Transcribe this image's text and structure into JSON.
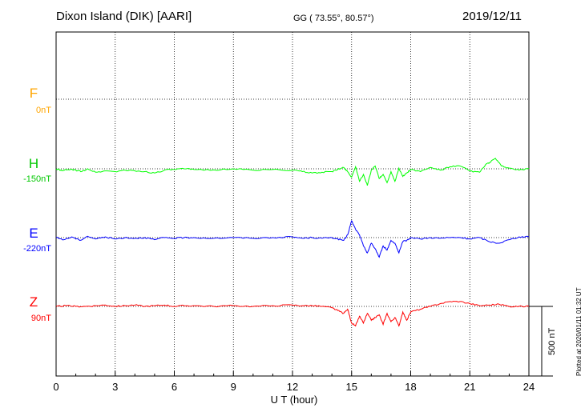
{
  "header": {
    "station": "Dixon Island (DIK)  [AARI]",
    "coords": "GG ( 73.55°,  80.57°)",
    "date": "2019/12/11"
  },
  "footer": {
    "stamp": "Plotted at 2020/01/11 01:32 UT"
  },
  "components": [
    {
      "name": "F",
      "offset": "0nT",
      "color": "#ffa500"
    },
    {
      "name": "H",
      "offset": "-150nT",
      "color": "#00c800"
    },
    {
      "name": "E",
      "offset": "-220nT",
      "color": "#0000ff"
    },
    {
      "name": "Z",
      "offset": "90nT",
      "color": "#ff0000"
    }
  ],
  "scale_bar": {
    "label": "500 nT",
    "value_nT": 500
  },
  "chart_data": {
    "type": "line",
    "xlabel": "U T (hour)",
    "xlim": [
      0,
      24
    ],
    "x_ticks": [
      0,
      3,
      6,
      9,
      12,
      15,
      18,
      21,
      24
    ],
    "grid": true,
    "series": [
      {
        "name": "H",
        "color": "#00ff00",
        "x": [
          0,
          0.3,
          0.6,
          1,
          1.3,
          1.6,
          2,
          2.5,
          3,
          3.5,
          4,
          4.5,
          5,
          5.5,
          6,
          6.5,
          7,
          8,
          9,
          10,
          11,
          12,
          12.5,
          13,
          13.5,
          14,
          14.3,
          14.6,
          14.8,
          15,
          15.2,
          15.4,
          15.6,
          15.8,
          16,
          16.2,
          16.4,
          16.6,
          16.8,
          17,
          17.2,
          17.4,
          17.6,
          17.8,
          18,
          18.5,
          19,
          19.5,
          20,
          20.5,
          21,
          21.5,
          21.8,
          22,
          22.3,
          22.6,
          23,
          23.5,
          24
        ],
        "values": [
          0,
          -15,
          -5,
          -10,
          -20,
          0,
          -25,
          -15,
          -20,
          -10,
          -15,
          -20,
          -30,
          -10,
          -5,
          0,
          -5,
          -8,
          0,
          -10,
          -5,
          -10,
          -20,
          -30,
          -25,
          -20,
          -5,
          10,
          -20,
          -60,
          15,
          -90,
          -40,
          -120,
          -10,
          20,
          -70,
          -40,
          -100,
          -20,
          -90,
          5,
          -55,
          -30,
          -5,
          -20,
          10,
          -10,
          15,
          20,
          -15,
          -25,
          30,
          45,
          75,
          20,
          5,
          -10,
          0
        ]
      },
      {
        "name": "E",
        "color": "#0000ff",
        "x": [
          0,
          0.4,
          0.8,
          1.2,
          1.6,
          2,
          2.5,
          3,
          3.5,
          4,
          4.5,
          5,
          5.5,
          6,
          6.5,
          7,
          8,
          9,
          10,
          11,
          12,
          12.5,
          13,
          13.5,
          14,
          14.3,
          14.6,
          14.8,
          15,
          15.2,
          15.4,
          15.6,
          15.8,
          16,
          16.2,
          16.4,
          16.6,
          16.8,
          17,
          17.2,
          17.4,
          17.6,
          17.8,
          18,
          18.5,
          19,
          19.5,
          20,
          20.5,
          21,
          21.5,
          22,
          22.5,
          23,
          23.5,
          24
        ],
        "values": [
          0,
          -15,
          5,
          -20,
          10,
          -10,
          5,
          -10,
          0,
          -5,
          0,
          -15,
          0,
          -5,
          0,
          0,
          -5,
          0,
          -5,
          0,
          5,
          -5,
          0,
          -5,
          0,
          -10,
          -20,
          20,
          120,
          60,
          20,
          -60,
          -110,
          -40,
          -80,
          -140,
          -60,
          -90,
          -20,
          -40,
          -110,
          -30,
          -20,
          0,
          -10,
          0,
          -5,
          0,
          0,
          -10,
          0,
          -30,
          -40,
          -15,
          5,
          5
        ]
      },
      {
        "name": "Z",
        "color": "#ff0000",
        "x": [
          0,
          0.5,
          1,
          1.5,
          2,
          2.5,
          3,
          3.5,
          4,
          4.5,
          5,
          5.5,
          6,
          6.5,
          7,
          8,
          9,
          10,
          11,
          12,
          12.5,
          13,
          13.5,
          14,
          14.3,
          14.6,
          14.8,
          15,
          15.2,
          15.4,
          15.6,
          15.8,
          16,
          16.2,
          16.4,
          16.6,
          16.8,
          17,
          17.2,
          17.4,
          17.6,
          17.8,
          18,
          18.5,
          19,
          19.5,
          20,
          20.5,
          21,
          21.5,
          22,
          22.5,
          23,
          23.5,
          24
        ],
        "values": [
          0,
          5,
          0,
          0,
          5,
          10,
          0,
          5,
          10,
          0,
          5,
          10,
          0,
          5,
          5,
          0,
          5,
          0,
          5,
          10,
          5,
          5,
          0,
          -10,
          -30,
          -50,
          -20,
          -120,
          -140,
          -70,
          -120,
          -50,
          -100,
          -80,
          -60,
          -130,
          -50,
          -110,
          -80,
          -140,
          -40,
          -100,
          -40,
          -20,
          0,
          20,
          35,
          35,
          20,
          5,
          10,
          15,
          0,
          0,
          0
        ]
      }
    ]
  }
}
